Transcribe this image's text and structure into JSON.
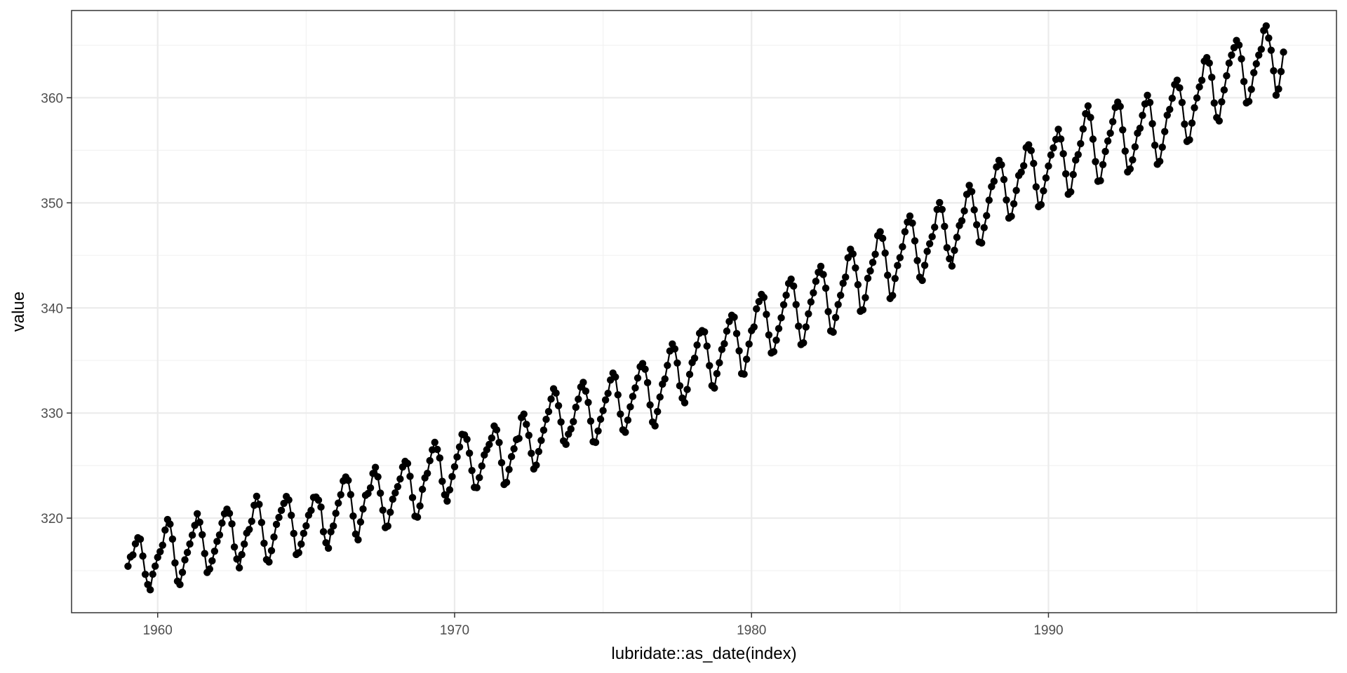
{
  "chart_data": {
    "type": "line",
    "title": "",
    "xlabel": "lubridate::as_date(index)",
    "ylabel": "value",
    "x_ticks": [
      1960,
      1970,
      1980,
      1990
    ],
    "x_tick_labels": [
      "1960",
      "1970",
      "1980",
      "1990"
    ],
    "y_ticks": [
      320,
      330,
      340,
      350,
      360
    ],
    "y_tick_labels": [
      "320",
      "330",
      "340",
      "350",
      "360"
    ],
    "xlim": [
      1957.1,
      1999.7
    ],
    "ylim": [
      311.0,
      368.3
    ],
    "grid": true,
    "legend": "none",
    "markers": true,
    "series_color": "#000000",
    "panel_border_color": "#333333",
    "major_grid_color": "#ebebeb",
    "minor_grid_color": "#f2f2f2",
    "x_start": "1959-01",
    "x_frequency": "monthly",
    "series": [
      {
        "values": [
          315.42,
          316.31,
          316.5,
          317.56,
          318.13,
          318.0,
          316.39,
          314.65,
          313.68,
          313.18,
          314.66,
          315.43,
          316.27,
          316.81,
          317.42,
          318.87,
          319.87,
          319.43,
          318.01,
          315.74,
          314.0,
          313.68,
          314.84,
          316.03,
          316.73,
          317.54,
          318.38,
          319.31,
          320.42,
          319.61,
          318.42,
          316.63,
          314.83,
          315.16,
          315.94,
          316.85,
          317.78,
          318.4,
          319.53,
          320.42,
          320.85,
          320.45,
          319.45,
          317.25,
          316.11,
          315.27,
          316.53,
          317.53,
          318.58,
          318.92,
          319.7,
          321.22,
          322.08,
          321.31,
          319.58,
          317.61,
          316.05,
          315.83,
          316.91,
          318.2,
          319.41,
          320.07,
          320.74,
          321.4,
          322.06,
          321.73,
          320.27,
          318.54,
          316.54,
          316.71,
          317.53,
          318.55,
          319.27,
          320.28,
          320.73,
          321.97,
          322.0,
          321.71,
          321.05,
          318.71,
          317.66,
          317.14,
          318.7,
          319.25,
          320.46,
          321.43,
          322.23,
          323.54,
          323.91,
          323.59,
          322.24,
          320.2,
          318.48,
          317.94,
          319.63,
          320.87,
          322.17,
          322.34,
          322.88,
          324.25,
          324.83,
          323.93,
          322.38,
          320.76,
          319.1,
          319.24,
          320.56,
          321.8,
          322.4,
          322.99,
          323.73,
          324.86,
          325.4,
          325.2,
          323.98,
          321.95,
          320.18,
          320.09,
          321.16,
          322.74,
          323.83,
          324.26,
          325.47,
          326.5,
          327.21,
          326.54,
          325.72,
          323.5,
          322.22,
          321.62,
          322.69,
          323.95,
          324.89,
          325.82,
          326.77,
          327.97,
          327.91,
          327.5,
          326.18,
          324.53,
          322.93,
          322.9,
          323.85,
          324.96,
          326.01,
          326.51,
          327.01,
          327.62,
          328.76,
          328.4,
          327.2,
          325.27,
          323.2,
          323.4,
          324.63,
          325.85,
          326.6,
          327.47,
          327.58,
          329.56,
          329.9,
          328.92,
          327.88,
          326.16,
          324.68,
          325.04,
          326.34,
          327.39,
          328.37,
          329.4,
          330.14,
          331.33,
          332.31,
          331.9,
          330.7,
          329.15,
          327.35,
          327.02,
          327.99,
          328.48,
          329.18,
          330.55,
          331.32,
          332.48,
          332.92,
          332.08,
          331.01,
          329.23,
          327.27,
          327.21,
          328.29,
          329.41,
          330.23,
          331.25,
          331.87,
          333.14,
          333.8,
          333.43,
          331.73,
          329.9,
          328.4,
          328.17,
          329.32,
          330.59,
          331.58,
          332.39,
          333.33,
          334.41,
          334.71,
          334.17,
          332.89,
          330.77,
          329.14,
          328.78,
          330.14,
          331.52,
          332.75,
          333.24,
          334.53,
          335.9,
          336.57,
          336.1,
          334.76,
          332.59,
          331.42,
          330.98,
          332.24,
          333.68,
          334.8,
          335.22,
          336.47,
          337.59,
          337.84,
          337.72,
          336.37,
          334.51,
          332.6,
          332.38,
          333.75,
          334.78,
          336.05,
          336.59,
          337.79,
          338.71,
          339.3,
          339.12,
          337.56,
          335.92,
          333.75,
          333.7,
          335.12,
          336.56,
          337.84,
          338.19,
          339.91,
          340.6,
          341.29,
          341.0,
          339.39,
          337.43,
          335.72,
          335.84,
          336.93,
          338.04,
          339.06,
          340.3,
          341.21,
          342.33,
          342.74,
          342.08,
          340.32,
          338.26,
          336.52,
          336.68,
          338.19,
          339.44,
          340.57,
          341.44,
          342.53,
          343.39,
          343.96,
          343.18,
          341.88,
          339.65,
          337.81,
          337.69,
          339.09,
          340.32,
          341.2,
          342.35,
          342.93,
          344.77,
          345.58,
          345.14,
          343.81,
          342.21,
          339.69,
          339.82,
          340.98,
          342.82,
          343.52,
          344.33,
          345.11,
          346.88,
          347.25,
          346.62,
          345.22,
          343.11,
          340.9,
          341.18,
          342.8,
          344.04,
          344.79,
          345.82,
          347.25,
          348.17,
          348.74,
          348.07,
          346.38,
          344.51,
          342.92,
          342.62,
          344.06,
          345.38,
          346.11,
          346.78,
          347.68,
          349.37,
          350.03,
          349.37,
          347.76,
          345.73,
          344.68,
          343.99,
          345.48,
          346.72,
          347.84,
          348.29,
          349.23,
          350.8,
          351.66,
          351.07,
          349.33,
          347.92,
          346.27,
          346.18,
          347.64,
          348.78,
          350.25,
          351.54,
          352.05,
          353.41,
          354.04,
          353.62,
          352.22,
          350.27,
          348.55,
          348.72,
          349.91,
          351.18,
          352.6,
          352.92,
          353.53,
          355.26,
          355.52,
          354.97,
          353.75,
          351.52,
          349.64,
          349.83,
          351.14,
          352.37,
          353.5,
          354.55,
          355.23,
          356.04,
          357.0,
          356.07,
          354.67,
          352.76,
          350.82,
          351.04,
          352.69,
          354.07,
          354.59,
          355.63,
          357.03,
          358.48,
          359.22,
          358.12,
          356.06,
          353.92,
          352.05,
          352.11,
          353.64,
          354.89,
          355.88,
          356.63,
          357.72,
          359.07,
          359.58,
          359.17,
          356.94,
          354.92,
          352.94,
          353.23,
          354.09,
          355.33,
          356.63,
          357.1,
          358.32,
          359.41,
          360.23,
          359.55,
          357.53,
          355.48,
          353.67,
          353.95,
          355.3,
          356.78,
          358.34,
          358.89,
          359.95,
          361.25,
          361.67,
          360.94,
          359.55,
          357.49,
          355.84,
          356.0,
          357.59,
          359.05,
          359.98,
          361.03,
          361.66,
          363.48,
          363.82,
          363.3,
          361.94,
          359.5,
          358.11,
          357.8,
          359.61,
          360.74,
          362.09,
          363.29,
          364.06,
          364.76,
          365.45,
          365.01,
          363.7,
          361.54,
          359.51,
          359.65,
          360.8,
          362.38,
          363.23,
          364.06,
          364.61,
          366.4,
          366.84,
          365.68,
          364.52,
          362.57,
          360.24,
          360.83,
          362.49,
          364.34
        ]
      }
    ]
  }
}
